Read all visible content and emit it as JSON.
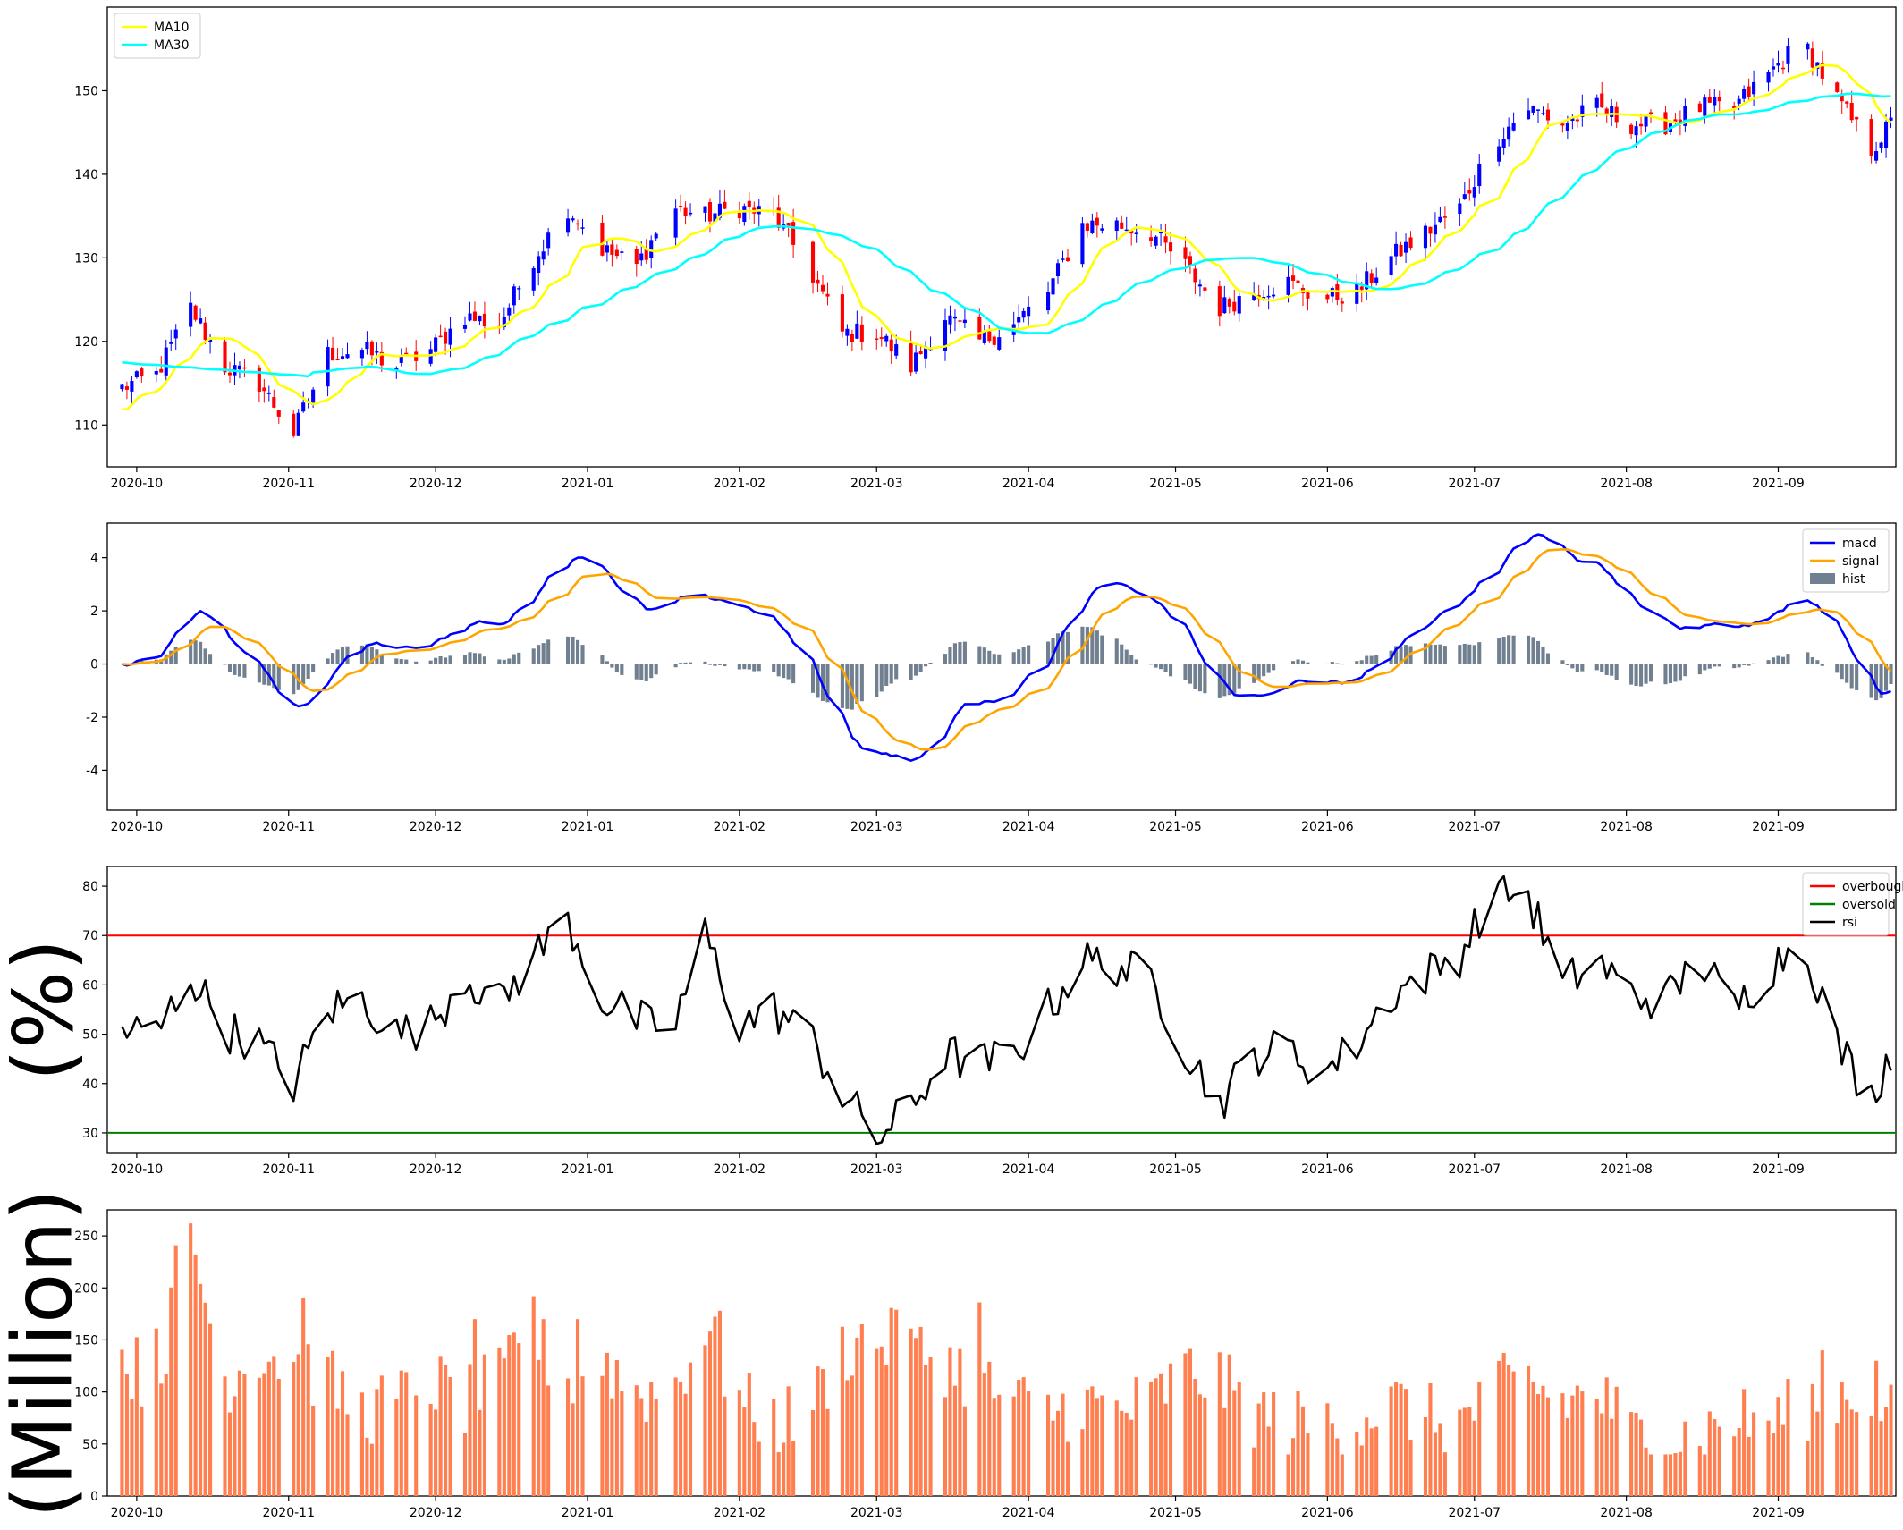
{
  "colors": {
    "up": "#0000ff",
    "down": "#ff0000",
    "ma10": "#ffff00",
    "ma30": "#00ffff",
    "macd": "#0000ff",
    "signal": "#ffa500",
    "hist": "#708090",
    "rsi": "#000000",
    "overbought": "#ff0000",
    "oversold": "#008000",
    "volume": "#ff7f50"
  },
  "chart_data": [
    {
      "type": "candlestick",
      "title": "",
      "xlabel": "",
      "ylabel": "",
      "x_tick_labels": [
        "2020-10",
        "2020-11",
        "2020-12",
        "2021-01",
        "2021-02",
        "2021-03",
        "2021-04",
        "2021-05",
        "2021-06",
        "2021-07",
        "2021-08",
        "2021-09"
      ],
      "ylim": [
        105,
        160
      ],
      "yticks": [
        110,
        120,
        130,
        140,
        150
      ],
      "legend_position": "top-left",
      "series": [
        {
          "name": "MA10",
          "values": []
        },
        {
          "name": "MA30",
          "values": []
        }
      ],
      "price_anchors": [
        {
          "date": "2020-09-28",
          "close": 114.5
        },
        {
          "date": "2020-10-05",
          "close": 116
        },
        {
          "date": "2020-10-12",
          "close": 124
        },
        {
          "date": "2020-10-19",
          "close": 117
        },
        {
          "date": "2020-10-26",
          "close": 115
        },
        {
          "date": "2020-11-02",
          "close": 109
        },
        {
          "date": "2020-11-09",
          "close": 118.5
        },
        {
          "date": "2020-11-16",
          "close": 119
        },
        {
          "date": "2020-11-23",
          "close": 117
        },
        {
          "date": "2020-11-30",
          "close": 119
        },
        {
          "date": "2020-12-07",
          "close": 123
        },
        {
          "date": "2020-12-14",
          "close": 122
        },
        {
          "date": "2020-12-21",
          "close": 130
        },
        {
          "date": "2020-12-28",
          "close": 136
        },
        {
          "date": "2021-01-04",
          "close": 131
        },
        {
          "date": "2021-01-11",
          "close": 129
        },
        {
          "date": "2021-01-18",
          "close": 136
        },
        {
          "date": "2021-01-25",
          "close": 135
        },
        {
          "date": "2021-02-01",
          "close": 136
        },
        {
          "date": "2021-02-08",
          "close": 135
        },
        {
          "date": "2021-02-15",
          "close": 129
        },
        {
          "date": "2021-02-22",
          "close": 121
        },
        {
          "date": "2021-03-01",
          "close": 121
        },
        {
          "date": "2021-03-08",
          "close": 117
        },
        {
          "date": "2021-03-15",
          "close": 123
        },
        {
          "date": "2021-03-22",
          "close": 120
        },
        {
          "date": "2021-03-29",
          "close": 122
        },
        {
          "date": "2021-04-05",
          "close": 126
        },
        {
          "date": "2021-04-12",
          "close": 134
        },
        {
          "date": "2021-04-19",
          "close": 134
        },
        {
          "date": "2021-04-26",
          "close": 133
        },
        {
          "date": "2021-05-03",
          "close": 129
        },
        {
          "date": "2021-05-10",
          "close": 124
        },
        {
          "date": "2021-05-17",
          "close": 126
        },
        {
          "date": "2021-05-24",
          "close": 127
        },
        {
          "date": "2021-05-31",
          "close": 125
        },
        {
          "date": "2021-06-07",
          "close": 126
        },
        {
          "date": "2021-06-14",
          "close": 130
        },
        {
          "date": "2021-06-21",
          "close": 133
        },
        {
          "date": "2021-06-28",
          "close": 136
        },
        {
          "date": "2021-07-05",
          "close": 144
        },
        {
          "date": "2021-07-12",
          "close": 148
        },
        {
          "date": "2021-07-19",
          "close": 146
        },
        {
          "date": "2021-07-26",
          "close": 148
        },
        {
          "date": "2021-08-02",
          "close": 146
        },
        {
          "date": "2021-08-09",
          "close": 146
        },
        {
          "date": "2021-08-16",
          "close": 148
        },
        {
          "date": "2021-08-23",
          "close": 148
        },
        {
          "date": "2021-08-30",
          "close": 152
        },
        {
          "date": "2021-09-06",
          "close": 156
        },
        {
          "date": "2021-09-13",
          "close": 149
        },
        {
          "date": "2021-09-20",
          "close": 143
        },
        {
          "date": "2021-09-24",
          "close": 146
        }
      ]
    },
    {
      "type": "line",
      "title": "",
      "xlabel": "",
      "ylabel": "",
      "x_tick_labels": [
        "2020-10",
        "2020-11",
        "2020-12",
        "2021-01",
        "2021-02",
        "2021-03",
        "2021-04",
        "2021-05",
        "2021-06",
        "2021-07",
        "2021-08",
        "2021-09"
      ],
      "ylim": [
        -5.5,
        5.3
      ],
      "yticks": [
        -4,
        -2,
        0,
        2,
        4
      ],
      "legend_position": "top-right",
      "series": [
        {
          "name": "macd",
          "values": []
        },
        {
          "name": "signal",
          "values": []
        },
        {
          "name": "hist",
          "values": []
        }
      ]
    },
    {
      "type": "line",
      "title": "",
      "xlabel": "",
      "ylabel": "(%)",
      "x_tick_labels": [
        "2020-10",
        "2020-11",
        "2020-12",
        "2021-01",
        "2021-02",
        "2021-03",
        "2021-04",
        "2021-05",
        "2021-06",
        "2021-07",
        "2021-08",
        "2021-09"
      ],
      "ylim": [
        26,
        84
      ],
      "yticks": [
        30,
        40,
        50,
        60,
        70,
        80
      ],
      "legend_position": "top-right",
      "series": [
        {
          "name": "overbought",
          "values": [
            70
          ]
        },
        {
          "name": "oversold",
          "values": [
            30
          ]
        },
        {
          "name": "rsi",
          "values": []
        }
      ],
      "rsi_anchors": [
        {
          "date": "2020-09-28",
          "value": 51
        },
        {
          "date": "2020-10-05",
          "value": 50
        },
        {
          "date": "2020-10-12",
          "value": 62
        },
        {
          "date": "2020-10-19",
          "value": 51
        },
        {
          "date": "2020-10-26",
          "value": 48
        },
        {
          "date": "2020-11-02",
          "value": 40
        },
        {
          "date": "2020-11-09",
          "value": 55
        },
        {
          "date": "2020-11-16",
          "value": 57
        },
        {
          "date": "2020-11-23",
          "value": 50
        },
        {
          "date": "2020-11-30",
          "value": 52
        },
        {
          "date": "2020-12-07",
          "value": 62
        },
        {
          "date": "2020-12-14",
          "value": 56
        },
        {
          "date": "2020-12-21",
          "value": 66
        },
        {
          "date": "2020-12-28",
          "value": 73
        },
        {
          "date": "2021-01-04",
          "value": 57
        },
        {
          "date": "2021-01-11",
          "value": 53
        },
        {
          "date": "2021-01-18",
          "value": 50
        },
        {
          "date": "2021-01-25",
          "value": 70
        },
        {
          "date": "2021-02-01",
          "value": 52
        },
        {
          "date": "2021-02-08",
          "value": 55
        },
        {
          "date": "2021-02-15",
          "value": 50
        },
        {
          "date": "2021-02-22",
          "value": 38
        },
        {
          "date": "2021-03-01",
          "value": 29
        },
        {
          "date": "2021-03-08",
          "value": 35
        },
        {
          "date": "2021-03-15",
          "value": 46
        },
        {
          "date": "2021-03-22",
          "value": 44
        },
        {
          "date": "2021-03-29",
          "value": 46
        },
        {
          "date": "2021-04-05",
          "value": 55
        },
        {
          "date": "2021-04-12",
          "value": 65
        },
        {
          "date": "2021-04-19",
          "value": 64
        },
        {
          "date": "2021-04-26",
          "value": 61
        },
        {
          "date": "2021-05-03",
          "value": 47
        },
        {
          "date": "2021-05-10",
          "value": 36
        },
        {
          "date": "2021-05-17",
          "value": 46
        },
        {
          "date": "2021-05-24",
          "value": 47
        },
        {
          "date": "2021-05-31",
          "value": 42
        },
        {
          "date": "2021-06-07",
          "value": 48
        },
        {
          "date": "2021-06-14",
          "value": 58
        },
        {
          "date": "2021-06-21",
          "value": 62
        },
        {
          "date": "2021-06-28",
          "value": 66
        },
        {
          "date": "2021-07-05",
          "value": 80
        },
        {
          "date": "2021-07-12",
          "value": 78
        },
        {
          "date": "2021-07-19",
          "value": 60
        },
        {
          "date": "2021-07-26",
          "value": 65
        },
        {
          "date": "2021-08-02",
          "value": 58
        },
        {
          "date": "2021-08-09",
          "value": 57
        },
        {
          "date": "2021-08-16",
          "value": 65
        },
        {
          "date": "2021-08-23",
          "value": 55
        },
        {
          "date": "2021-08-30",
          "value": 63
        },
        {
          "date": "2021-09-06",
          "value": 70
        },
        {
          "date": "2021-09-13",
          "value": 48
        },
        {
          "date": "2021-09-20",
          "value": 37
        },
        {
          "date": "2021-09-24",
          "value": 47
        }
      ]
    },
    {
      "type": "bar",
      "title": "",
      "xlabel": "",
      "ylabel": "(Million)",
      "x_tick_labels": [
        "2020-10",
        "2020-11",
        "2020-12",
        "2021-01",
        "2021-02",
        "2021-03",
        "2021-04",
        "2021-05",
        "2021-06",
        "2021-07",
        "2021-08",
        "2021-09"
      ],
      "ylim": [
        0,
        275
      ],
      "yticks": [
        0,
        50,
        100,
        150,
        200,
        250
      ],
      "series": [
        {
          "name": "",
          "values": []
        }
      ],
      "volume_anchors": [
        {
          "date": "2020-09-28",
          "value": 130
        },
        {
          "date": "2020-10-05",
          "value": 110
        },
        {
          "date": "2020-10-12",
          "value": 250
        },
        {
          "date": "2020-10-19",
          "value": 110
        },
        {
          "date": "2020-10-26",
          "value": 140
        },
        {
          "date": "2020-11-02",
          "value": 130
        },
        {
          "date": "2020-11-09",
          "value": 110
        },
        {
          "date": "2020-11-16",
          "value": 80
        },
        {
          "date": "2020-11-23",
          "value": 90
        },
        {
          "date": "2020-11-30",
          "value": 110
        },
        {
          "date": "2020-12-07",
          "value": 90
        },
        {
          "date": "2020-12-14",
          "value": 110
        },
        {
          "date": "2020-12-21",
          "value": 150
        },
        {
          "date": "2020-12-28",
          "value": 110
        },
        {
          "date": "2021-01-04",
          "value": 130
        },
        {
          "date": "2021-01-11",
          "value": 100
        },
        {
          "date": "2021-01-18",
          "value": 100
        },
        {
          "date": "2021-01-25",
          "value": 160
        },
        {
          "date": "2021-02-01",
          "value": 90
        },
        {
          "date": "2021-02-08",
          "value": 70
        },
        {
          "date": "2021-02-15",
          "value": 80
        },
        {
          "date": "2021-02-22",
          "value": 140
        },
        {
          "date": "2021-03-01",
          "value": 150
        },
        {
          "date": "2021-03-08",
          "value": 140
        },
        {
          "date": "2021-03-15",
          "value": 130
        },
        {
          "date": "2021-03-22",
          "value": 110
        },
        {
          "date": "2021-03-29",
          "value": 90
        },
        {
          "date": "2021-04-05",
          "value": 80
        },
        {
          "date": "2021-04-12",
          "value": 90
        },
        {
          "date": "2021-04-19",
          "value": 80
        },
        {
          "date": "2021-04-26",
          "value": 90
        },
        {
          "date": "2021-05-03",
          "value": 120
        },
        {
          "date": "2021-05-10",
          "value": 110
        },
        {
          "date": "2021-05-17",
          "value": 80
        },
        {
          "date": "2021-05-24",
          "value": 70
        },
        {
          "date": "2021-05-31",
          "value": 70
        },
        {
          "date": "2021-06-07",
          "value": 75
        },
        {
          "date": "2021-06-14",
          "value": 90
        },
        {
          "date": "2021-06-21",
          "value": 75
        },
        {
          "date": "2021-06-28",
          "value": 70
        },
        {
          "date": "2021-07-05",
          "value": 100
        },
        {
          "date": "2021-07-12",
          "value": 110
        },
        {
          "date": "2021-07-19",
          "value": 90
        },
        {
          "date": "2021-07-26",
          "value": 100
        },
        {
          "date": "2021-08-02",
          "value": 60
        },
        {
          "date": "2021-08-09",
          "value": 55
        },
        {
          "date": "2021-08-16",
          "value": 60
        },
        {
          "date": "2021-08-23",
          "value": 75
        },
        {
          "date": "2021-08-30",
          "value": 70
        },
        {
          "date": "2021-09-06",
          "value": 85
        },
        {
          "date": "2021-09-13",
          "value": 100
        },
        {
          "date": "2021-09-20",
          "value": 100
        },
        {
          "date": "2021-09-24",
          "value": 75
        }
      ],
      "volume_peaks": [
        {
          "date": "2020-10-12",
          "value": 262
        },
        {
          "date": "2020-10-09",
          "value": 241
        },
        {
          "date": "2020-12-21",
          "value": 192
        },
        {
          "date": "2020-11-04",
          "value": 190
        },
        {
          "date": "2021-03-22",
          "value": 186
        },
        {
          "date": "2021-03-05",
          "value": 179
        },
        {
          "date": "2021-01-28",
          "value": 178
        },
        {
          "date": "2020-12-09",
          "value": 170
        },
        {
          "date": "2020-12-30",
          "value": 170
        },
        {
          "date": "2021-02-26",
          "value": 165
        },
        {
          "date": "2020-10-05",
          "value": 161
        },
        {
          "date": "2021-01-26",
          "value": 158
        },
        {
          "date": "2020-12-17",
          "value": 157
        },
        {
          "date": "2021-09-10",
          "value": 140
        },
        {
          "date": "2021-09-21",
          "value": 130
        }
      ]
    }
  ]
}
